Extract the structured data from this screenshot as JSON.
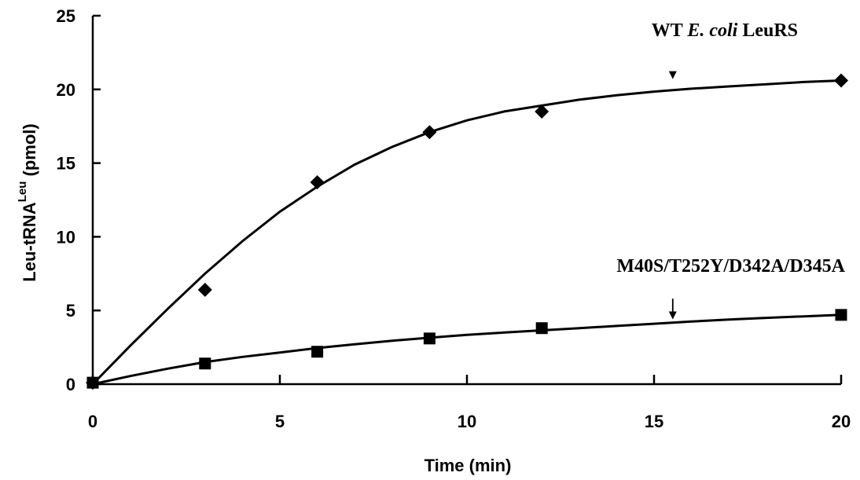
{
  "chart_data": {
    "type": "line",
    "title": "",
    "xlabel": "Time (min)",
    "ylabel_main": "Leu-tRNA",
    "ylabel_sup": "Leu",
    "ylabel_unit": " (pmol)",
    "xlim": [
      0,
      20
    ],
    "ylim": [
      0,
      25
    ],
    "xticks": [
      0,
      5,
      10,
      15,
      20
    ],
    "yticks": [
      0,
      5,
      10,
      15,
      20,
      25
    ],
    "grid": false,
    "series": [
      {
        "name": "WT E. coli LeuRS",
        "marker": "diamond",
        "x": [
          0,
          3,
          6,
          9,
          12,
          20
        ],
        "y": [
          0.1,
          6.4,
          13.7,
          17.1,
          18.5,
          20.6
        ],
        "fit_x": [
          0,
          1,
          2,
          3,
          4,
          5,
          6,
          7,
          8,
          9,
          10,
          11,
          12,
          13,
          14,
          15,
          16,
          17,
          18,
          19,
          20
        ],
        "fit_y": [
          0,
          2.6,
          5.1,
          7.5,
          9.7,
          11.7,
          13.4,
          14.9,
          16.1,
          17.1,
          17.9,
          18.5,
          18.9,
          19.3,
          19.6,
          19.85,
          20.05,
          20.2,
          20.35,
          20.5,
          20.6
        ]
      },
      {
        "name": "M40S/T252Y/D342A/D345A",
        "marker": "square",
        "x": [
          0,
          3,
          6,
          9,
          12,
          20
        ],
        "y": [
          0.1,
          1.4,
          2.2,
          3.1,
          3.8,
          4.7
        ],
        "fit_x": [
          0,
          1,
          2,
          3,
          4,
          5,
          6,
          7,
          8,
          9,
          10,
          11,
          12,
          13,
          14,
          15,
          16,
          17,
          18,
          19,
          20
        ],
        "fit_y": [
          0,
          0.55,
          1.05,
          1.5,
          1.85,
          2.15,
          2.45,
          2.7,
          2.95,
          3.15,
          3.35,
          3.5,
          3.65,
          3.8,
          3.95,
          4.1,
          4.25,
          4.38,
          4.5,
          4.6,
          4.7
        ]
      }
    ],
    "annotations": [
      {
        "series_index": 0,
        "parts": [
          {
            "text": "WT ",
            "italic": false
          },
          {
            "text": "E. coli",
            "italic": true
          },
          {
            "text": " LeuRS",
            "italic": false
          }
        ],
        "arrow_x": 15.5,
        "arrow_y_start": 21.1,
        "arrow_y_end": 20.7
      },
      {
        "series_index": 1,
        "parts": [
          {
            "text": "M40S/T252Y/D342A/D345A",
            "italic": false
          }
        ],
        "arrow_x": 15.5,
        "arrow_y_start": 5.8,
        "arrow_y_end": 4.4
      }
    ]
  }
}
